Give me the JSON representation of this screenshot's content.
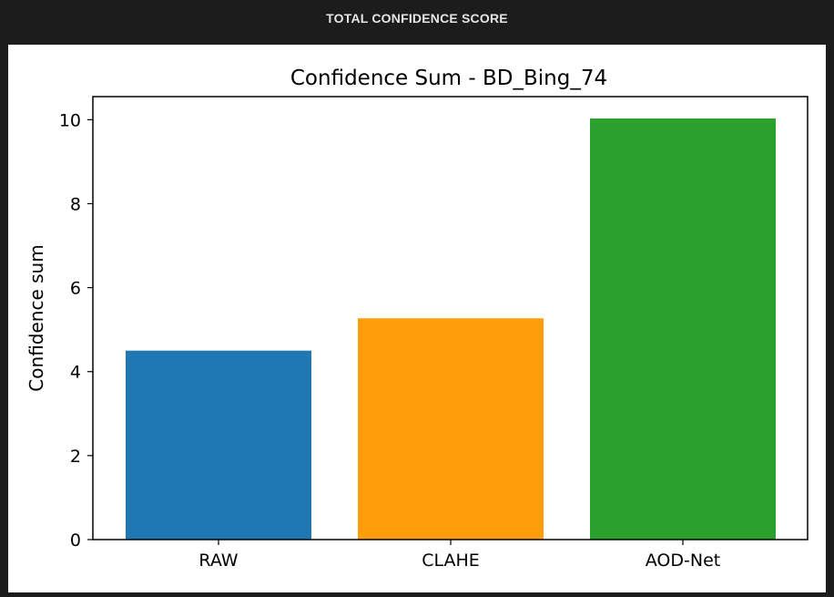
{
  "header": {
    "title": "TOTAL CONFIDENCE SCORE"
  },
  "chart_data": {
    "type": "bar",
    "title": "Confidence Sum - BD_Bing_74",
    "xlabel": "",
    "ylabel": "Confidence sum",
    "categories": [
      "RAW",
      "CLAHE",
      "AOD-Net"
    ],
    "values": [
      4.5,
      5.27,
      10.03
    ],
    "colors": [
      "#1f77b4",
      "#ff9d0a",
      "#2ca02c"
    ],
    "ylim": [
      0,
      10.55
    ],
    "yticks": [
      0,
      2,
      4,
      6,
      8,
      10
    ],
    "grid": false,
    "legend": "none"
  }
}
